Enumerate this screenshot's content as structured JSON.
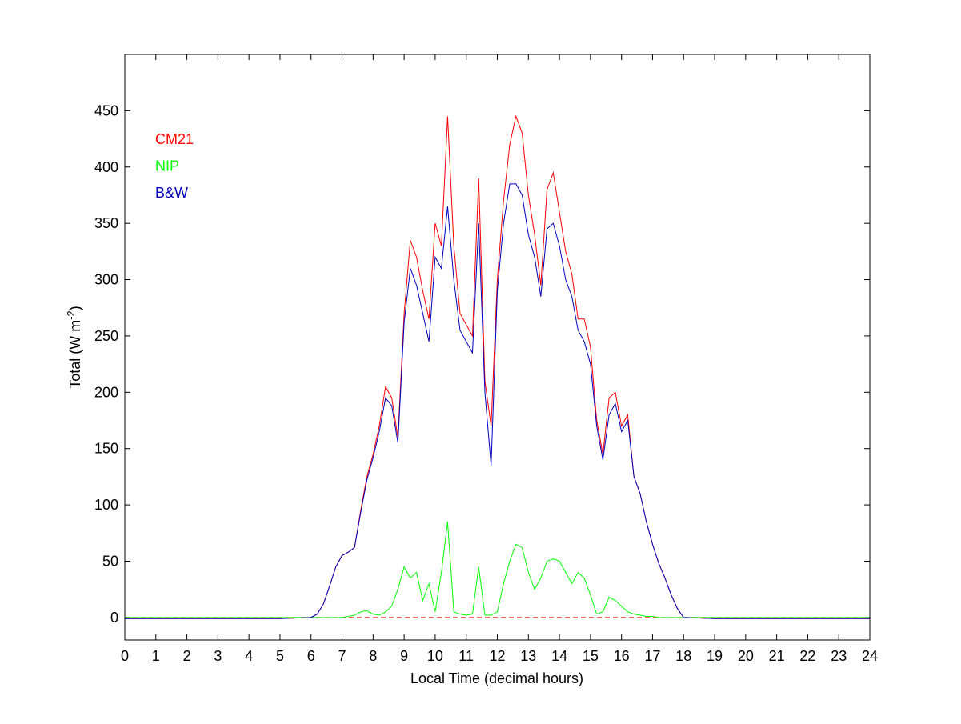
{
  "chart_data": {
    "type": "line",
    "xlabel": "Local Time (decimal hours)",
    "ylabel": {
      "text": "Total (W m",
      "superscript": "-2",
      "suffix": ")"
    },
    "x": [
      0,
      1,
      2,
      3,
      4,
      5,
      6,
      6.2,
      6.4,
      6.6,
      6.8,
      7,
      7.2,
      7.4,
      7.6,
      7.8,
      8,
      8.2,
      8.4,
      8.6,
      8.8,
      9,
      9.2,
      9.4,
      9.6,
      9.8,
      10,
      10.2,
      10.4,
      10.6,
      10.8,
      11,
      11.2,
      11.4,
      11.6,
      11.8,
      12,
      12.2,
      12.4,
      12.6,
      12.8,
      13,
      13.2,
      13.4,
      13.6,
      13.8,
      14,
      14.2,
      14.4,
      14.6,
      14.8,
      15,
      15.2,
      15.4,
      15.6,
      15.8,
      16,
      16.2,
      16.4,
      16.6,
      16.8,
      17,
      17.2,
      17.4,
      17.6,
      17.8,
      18,
      19,
      20,
      21,
      22,
      23,
      24
    ],
    "series": [
      {
        "name": "CM21",
        "color": "#ff0000",
        "values": [
          -1,
          -1,
          -1,
          -1,
          -1,
          -1,
          0,
          3,
          12,
          28,
          45,
          55,
          58,
          62,
          95,
          125,
          145,
          170,
          205,
          195,
          160,
          270,
          335,
          320,
          290,
          265,
          350,
          330,
          445,
          330,
          270,
          260,
          250,
          390,
          210,
          170,
          300,
          370,
          420,
          445,
          430,
          375,
          340,
          295,
          380,
          395,
          360,
          325,
          305,
          265,
          265,
          240,
          175,
          145,
          195,
          200,
          170,
          180,
          125,
          110,
          85,
          65,
          48,
          35,
          20,
          8,
          0,
          -1,
          -1,
          -1,
          -1,
          -1,
          -1
        ]
      },
      {
        "name": "NIP",
        "color": "#00ff00",
        "values": [
          0,
          0,
          0,
          0,
          0,
          0,
          0,
          0,
          0,
          0,
          0,
          0,
          1,
          2,
          5,
          6,
          3,
          2,
          5,
          10,
          25,
          45,
          35,
          40,
          15,
          30,
          5,
          40,
          85,
          5,
          3,
          2,
          3,
          45,
          2,
          2,
          5,
          30,
          50,
          65,
          62,
          40,
          25,
          35,
          50,
          52,
          50,
          40,
          30,
          40,
          35,
          20,
          3,
          5,
          18,
          15,
          10,
          5,
          3,
          2,
          1,
          1,
          0,
          0,
          0,
          0,
          0,
          0,
          0,
          0,
          0,
          0,
          0
        ]
      },
      {
        "name": "B&W",
        "color": "#0000c0",
        "values": [
          -1,
          -1,
          -1,
          -1,
          -1,
          -1,
          0,
          3,
          12,
          28,
          45,
          55,
          58,
          62,
          93,
          122,
          142,
          165,
          195,
          188,
          155,
          262,
          310,
          295,
          270,
          245,
          320,
          310,
          365,
          300,
          255,
          245,
          235,
          350,
          200,
          135,
          290,
          350,
          385,
          385,
          375,
          340,
          320,
          285,
          345,
          350,
          330,
          300,
          285,
          255,
          245,
          225,
          170,
          140,
          180,
          190,
          165,
          175,
          125,
          110,
          85,
          65,
          48,
          35,
          20,
          8,
          0,
          -1,
          -1,
          -1,
          -1,
          -1,
          -1
        ]
      }
    ],
    "zero_line": {
      "value": 0,
      "color": "#ff0000"
    },
    "legend": "upper left",
    "xlim": [
      0,
      24
    ],
    "xticks": [
      0,
      1,
      2,
      3,
      4,
      5,
      6,
      7,
      8,
      9,
      10,
      11,
      12,
      13,
      14,
      15,
      16,
      17,
      18,
      19,
      20,
      21,
      22,
      23,
      24
    ],
    "ylim": [
      -20,
      500
    ],
    "yticks": [
      0,
      50,
      100,
      150,
      200,
      250,
      300,
      350,
      400,
      450
    ]
  }
}
